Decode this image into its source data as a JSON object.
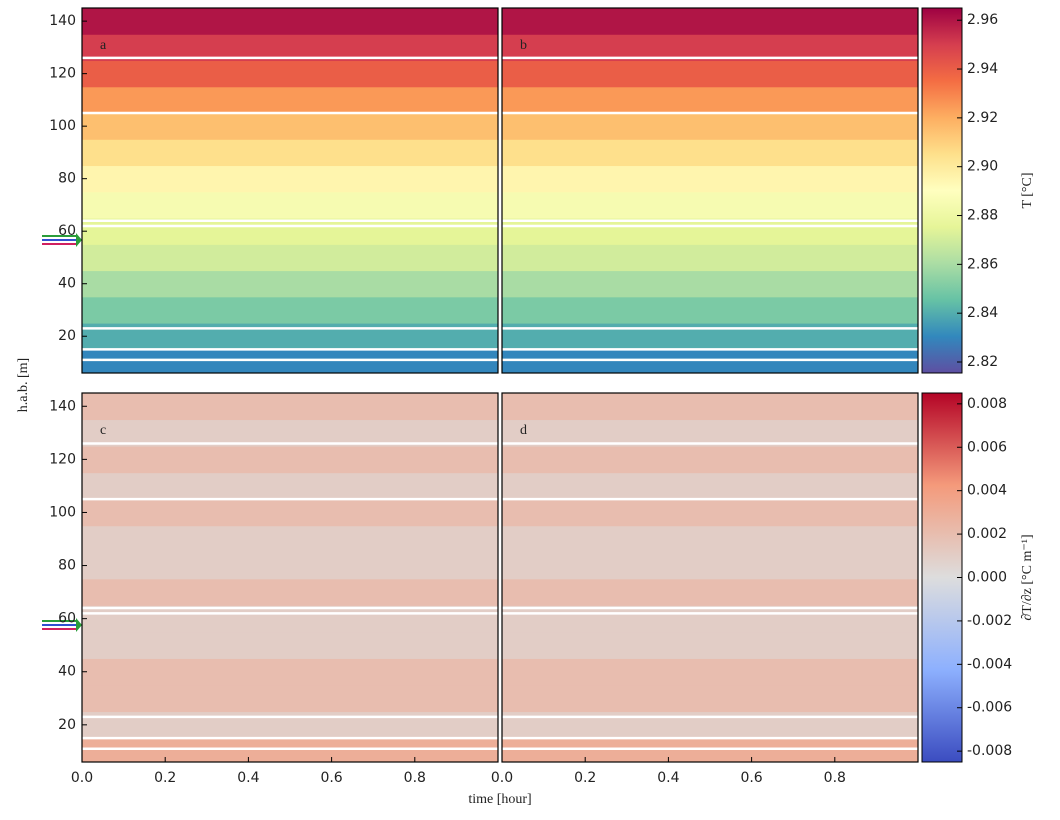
{
  "chart_data": [
    {
      "type": "heatmap",
      "label": "a",
      "colormap": "Spectral_r",
      "ylabel": "h.a.b. [m]",
      "ylim": [
        6,
        145
      ],
      "yticks": [
        20,
        40,
        60,
        80,
        100,
        120,
        140
      ],
      "heights": [
        10,
        20,
        30,
        40,
        50,
        60,
        70,
        80,
        90,
        100,
        110,
        120,
        130,
        140
      ],
      "values": [
        2.83,
        2.84,
        2.85,
        2.86,
        2.87,
        2.875,
        2.885,
        2.895,
        2.905,
        2.915,
        2.925,
        2.94,
        2.95,
        2.96
      ],
      "sensor_heights": [
        11,
        15,
        23,
        62,
        64,
        105,
        126
      ]
    },
    {
      "type": "heatmap",
      "label": "b",
      "colormap": "Spectral_r",
      "ylim": [
        6,
        145
      ],
      "heights": [
        10,
        20,
        30,
        40,
        50,
        60,
        70,
        80,
        90,
        100,
        110,
        120,
        130,
        140
      ],
      "values": [
        2.83,
        2.84,
        2.85,
        2.86,
        2.87,
        2.875,
        2.885,
        2.895,
        2.905,
        2.915,
        2.925,
        2.94,
        2.95,
        2.96
      ],
      "sensor_heights": [
        11,
        15,
        23,
        62,
        64,
        105,
        126
      ],
      "colorbar": {
        "label": "T [°C]",
        "lim": [
          2.8155,
          2.965
        ],
        "ticks": [
          {
            "value": 2.82,
            "label": "2.82"
          },
          {
            "value": 2.84,
            "label": "2.84"
          },
          {
            "value": 2.86,
            "label": "2.86"
          },
          {
            "value": 2.88,
            "label": "2.88"
          },
          {
            "value": 2.9,
            "label": "2.90"
          },
          {
            "value": 2.92,
            "label": "2.92"
          },
          {
            "value": 2.94,
            "label": "2.94"
          },
          {
            "value": 2.96,
            "label": "2.96"
          }
        ]
      }
    },
    {
      "type": "heatmap",
      "label": "c",
      "colormap": "coolwarm",
      "xlabel": "time [hour]",
      "xlim": [
        0,
        1
      ],
      "xticks": [
        {
          "value": 0,
          "label": "0.0"
        },
        0.2,
        0.4,
        0.6,
        0.8
      ],
      "ylim": [
        6,
        145
      ],
      "yticks": [
        20,
        40,
        60,
        80,
        100,
        120,
        140
      ],
      "heights": [
        10,
        20,
        30,
        40,
        50,
        60,
        70,
        80,
        90,
        100,
        110,
        120,
        130,
        140
      ],
      "values": [
        0.003,
        0.001,
        0.002,
        0.002,
        0.001,
        0.001,
        0.002,
        0.001,
        0.001,
        0.002,
        0.001,
        0.002,
        0.001,
        0.002
      ],
      "sensor_heights": [
        11,
        15,
        23,
        62,
        64,
        105,
        126
      ]
    },
    {
      "type": "heatmap",
      "label": "d",
      "colormap": "coolwarm",
      "xlim": [
        0,
        1
      ],
      "xticks": [
        {
          "value": 0,
          "label": "0.0"
        },
        0.2,
        0.4,
        0.6,
        0.8
      ],
      "ylim": [
        6,
        145
      ],
      "heights": [
        10,
        20,
        30,
        40,
        50,
        60,
        70,
        80,
        90,
        100,
        110,
        120,
        130,
        140
      ],
      "values": [
        0.003,
        0.001,
        0.002,
        0.002,
        0.001,
        0.001,
        0.002,
        0.001,
        0.001,
        0.002,
        0.001,
        0.002,
        0.001,
        0.002
      ],
      "sensor_heights": [
        11,
        15,
        23,
        62,
        64,
        105,
        126
      ],
      "colorbar": {
        "label": "∂T/∂z [°C m⁻¹]",
        "lim": [
          -0.0085,
          0.0085
        ],
        "ticks": [
          {
            "value": -0.008,
            "label": "-0.008"
          },
          {
            "value": -0.006,
            "label": "-0.006"
          },
          {
            "value": -0.004,
            "label": "-0.004"
          },
          {
            "value": -0.002,
            "label": "-0.002"
          },
          {
            "value": 0,
            "label": "0.000"
          },
          {
            "value": 0.002,
            "label": "0.002"
          },
          {
            "value": 0.004,
            "label": "0.004"
          },
          {
            "value": 0.006,
            "label": "0.006"
          },
          {
            "value": 0.008,
            "label": "0.008"
          }
        ]
      }
    }
  ]
}
